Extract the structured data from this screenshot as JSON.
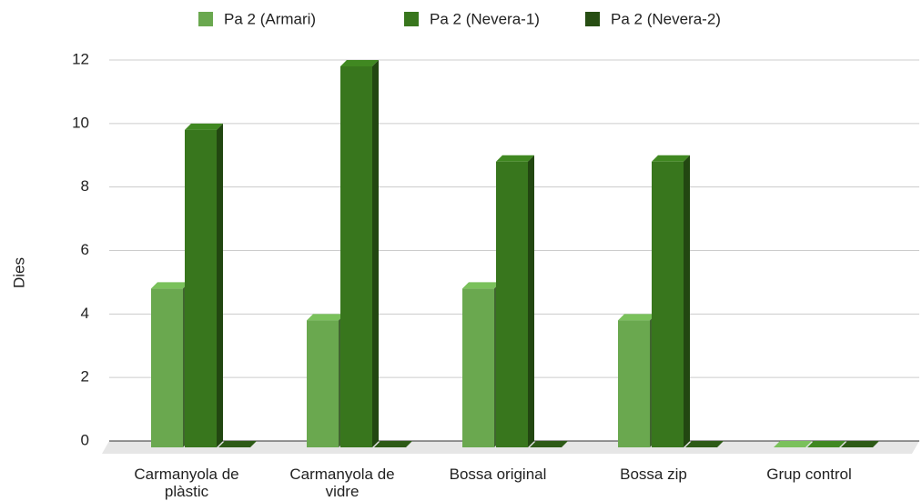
{
  "chart_data": {
    "type": "bar3d",
    "categories": [
      "Carmanyola de plàstic",
      "Carmanyola de vidre",
      "Bossa original",
      "Bossa zip",
      "Grup control"
    ],
    "series": [
      {
        "name": "Pa 2 (Armari)",
        "color": "#6aa84f",
        "values": [
          5,
          4,
          5,
          4,
          0
        ]
      },
      {
        "name": "Pa 2 (Nevera-1)",
        "color": "#38761d",
        "values": [
          10,
          12,
          9,
          9,
          0
        ]
      },
      {
        "name": "Pa 2 (Nevera-2)",
        "color": "#274e13",
        "values": [
          0,
          0,
          0,
          0,
          0
        ]
      }
    ],
    "y_label": "Dies",
    "ylim": [
      0,
      12
    ],
    "yticks": [
      0,
      2,
      4,
      6,
      8,
      10,
      12
    ],
    "grid": true,
    "legend": "top"
  }
}
